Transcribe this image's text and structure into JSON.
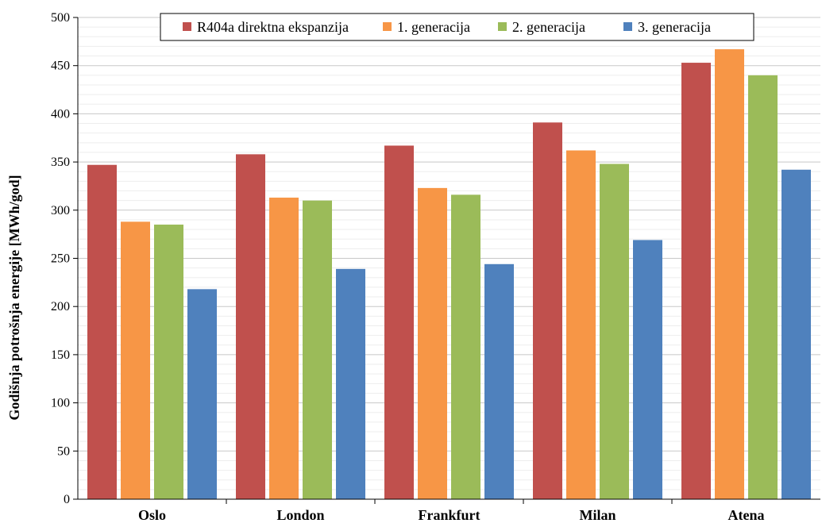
{
  "chart_data": {
    "type": "bar",
    "title": "",
    "xlabel": "",
    "ylabel": "Godišnja potrošnja energije [MWh/god]",
    "ylim": [
      0,
      500
    ],
    "yticks": [
      0,
      50,
      100,
      150,
      200,
      250,
      300,
      350,
      400,
      450,
      500
    ],
    "grid": true,
    "legend_position": "top",
    "categories": [
      "Oslo",
      "London",
      "Frankfurt",
      "Milan",
      "Atena"
    ],
    "series": [
      {
        "name": "R404a direktna ekspanzija",
        "color": "#c0504d",
        "values": [
          347,
          358,
          367,
          391,
          453
        ]
      },
      {
        "name": "1. generacija",
        "color": "#f79646",
        "values": [
          288,
          313,
          323,
          362,
          467
        ]
      },
      {
        "name": "2. generacija",
        "color": "#9bbb59",
        "values": [
          285,
          310,
          316,
          348,
          440
        ]
      },
      {
        "name": "3. generacija",
        "color": "#4f81bd",
        "values": [
          218,
          239,
          244,
          269,
          342
        ]
      }
    ]
  }
}
